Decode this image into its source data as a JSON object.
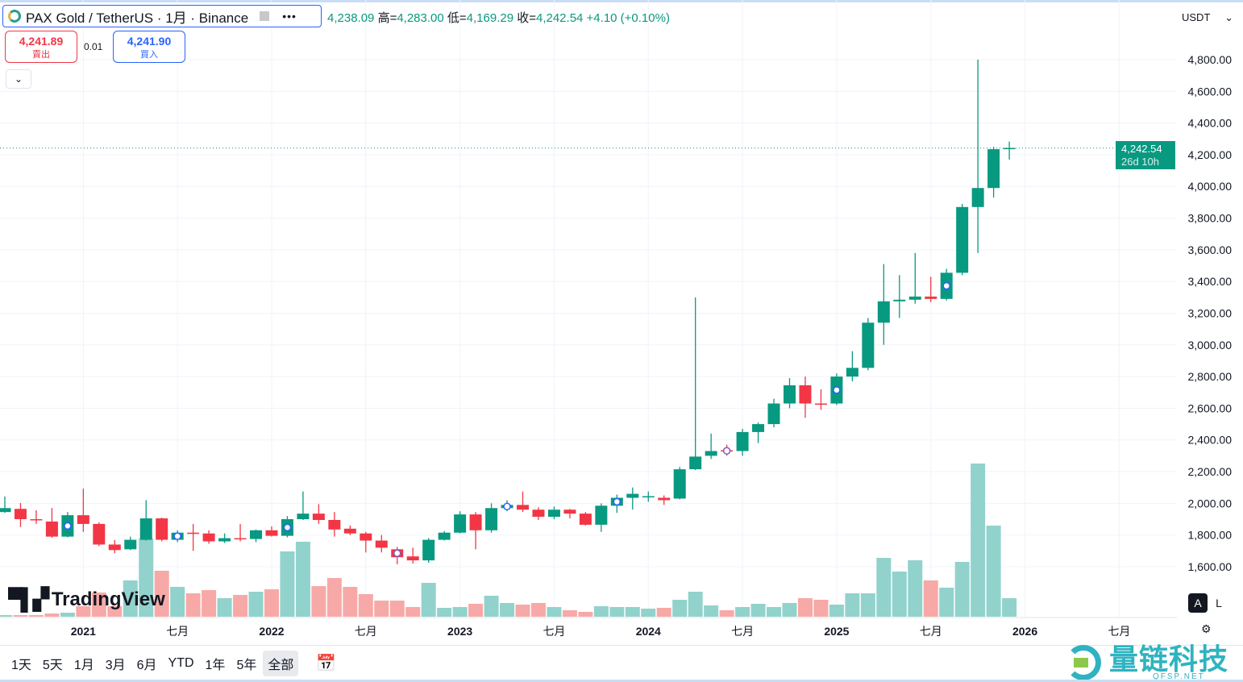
{
  "header": {
    "symbol": "PAX Gold / TetherUS · 1月 · Binance",
    "more": "•••",
    "ohlc": {
      "open": "4,238.09",
      "high_label": "高=",
      "high": "4,283.00",
      "low_label": "低=",
      "low": "4,169.29",
      "close_label": "收=",
      "close": "4,242.54",
      "change": "+4.10 (+0.10%)"
    }
  },
  "trade": {
    "sell_price": "4,241.89",
    "sell_label": "賣出",
    "spread": "0.01",
    "buy_price": "4,241.90",
    "buy_label": "買入"
  },
  "currency": "USDT",
  "price_label": {
    "price": "4,242.54",
    "countdown": "26d 10h"
  },
  "scale_buttons": {
    "auto": "A",
    "log": "L"
  },
  "branding": "TradingView",
  "watermark": {
    "name": "量链科技",
    "site": "QFSP.NET"
  },
  "ranges": [
    {
      "label": "1天"
    },
    {
      "label": "5天"
    },
    {
      "label": "1月"
    },
    {
      "label": "3月"
    },
    {
      "label": "6月"
    },
    {
      "label": "YTD"
    },
    {
      "label": "1年"
    },
    {
      "label": "5年"
    },
    {
      "label": "全部",
      "selected": true
    }
  ],
  "colors": {
    "up": "#089981",
    "down": "#f23645",
    "vol_up": "#92d2cc",
    "vol_down": "#f7a9a7",
    "grid": "#f0f3fa"
  },
  "chart_data": {
    "type": "candlestick",
    "interval": "1M",
    "ylim": [
      1500,
      4900
    ],
    "yticks": [
      "1,600.00",
      "1,800.00",
      "2,000.00",
      "2,200.00",
      "2,400.00",
      "2,600.00",
      "2,800.00",
      "3,000.00",
      "3,200.00",
      "3,400.00",
      "3,600.00",
      "3,800.00",
      "4,000.00",
      "4,200.00",
      "4,400.00",
      "4,600.00",
      "4,800.00"
    ],
    "ytick_values": [
      1600,
      1800,
      2000,
      2200,
      2400,
      2600,
      2800,
      3000,
      3200,
      3400,
      3600,
      3800,
      4000,
      4200,
      4400,
      4600,
      4800
    ],
    "xticks": [
      {
        "label": "2021",
        "month": "2021-01"
      },
      {
        "label": "七月",
        "month": "2021-07"
      },
      {
        "label": "2022",
        "month": "2022-01"
      },
      {
        "label": "七月",
        "month": "2022-07"
      },
      {
        "label": "2023",
        "month": "2023-01"
      },
      {
        "label": "七月",
        "month": "2023-07"
      },
      {
        "label": "2024",
        "month": "2024-01"
      },
      {
        "label": "七月",
        "month": "2024-07"
      },
      {
        "label": "2025",
        "month": "2025-01"
      },
      {
        "label": "七月",
        "month": "2025-07"
      },
      {
        "label": "2026",
        "month": "2026-01"
      },
      {
        "label": "七月",
        "month": "2026-07"
      }
    ],
    "first_month": "2020-08",
    "columns": [
      "month",
      "open",
      "high",
      "low",
      "close",
      "volume_relative"
    ],
    "candles": [
      [
        "2020-08",
        1945,
        2043,
        1940,
        1970,
        2
      ],
      [
        "2020-09",
        1965,
        2002,
        1850,
        1900,
        2
      ],
      [
        "2020-10",
        1900,
        1956,
        1870,
        1895,
        2
      ],
      [
        "2020-11",
        1885,
        1970,
        1783,
        1790,
        4
      ],
      [
        "2020-12",
        1790,
        1945,
        1785,
        1925,
        5
      ],
      [
        "2021-01",
        1925,
        2093,
        1820,
        1870,
        13
      ],
      [
        "2021-02",
        1870,
        1880,
        1730,
        1740,
        30
      ],
      [
        "2021-03",
        1740,
        1768,
        1685,
        1705,
        13
      ],
      [
        "2021-04",
        1710,
        1790,
        1705,
        1770,
        45
      ],
      [
        "2021-05",
        1770,
        2020,
        1765,
        1905,
        97
      ],
      [
        "2021-06",
        1905,
        1910,
        1760,
        1770,
        57
      ],
      [
        "2021-07",
        1770,
        1830,
        1755,
        1815,
        37
      ],
      [
        "2021-08",
        1815,
        1870,
        1700,
        1812,
        29
      ],
      [
        "2021-09",
        1810,
        1830,
        1745,
        1760,
        33
      ],
      [
        "2021-10",
        1760,
        1810,
        1750,
        1780,
        23
      ],
      [
        "2021-11",
        1780,
        1870,
        1760,
        1775,
        27
      ],
      [
        "2021-12",
        1775,
        1835,
        1755,
        1830,
        31
      ],
      [
        "2022-01",
        1830,
        1855,
        1790,
        1795,
        34
      ],
      [
        "2022-02",
        1795,
        1920,
        1785,
        1900,
        81
      ],
      [
        "2022-03",
        1900,
        2075,
        1895,
        1935,
        93
      ],
      [
        "2022-04",
        1935,
        1995,
        1870,
        1895,
        38
      ],
      [
        "2022-05",
        1895,
        1945,
        1790,
        1835,
        48
      ],
      [
        "2022-06",
        1840,
        1860,
        1800,
        1810,
        37
      ],
      [
        "2022-07",
        1810,
        1820,
        1690,
        1765,
        28
      ],
      [
        "2022-08",
        1765,
        1800,
        1690,
        1720,
        20
      ],
      [
        "2022-09",
        1710,
        1725,
        1615,
        1660,
        20
      ],
      [
        "2022-10",
        1665,
        1720,
        1620,
        1640,
        12
      ],
      [
        "2022-11",
        1640,
        1780,
        1625,
        1770,
        42
      ],
      [
        "2022-12",
        1770,
        1825,
        1765,
        1815,
        11
      ],
      [
        "2023-01",
        1815,
        1950,
        1810,
        1930,
        12
      ],
      [
        "2023-02",
        1930,
        1945,
        1710,
        1830,
        16
      ],
      [
        "2023-03",
        1830,
        2000,
        1815,
        1970,
        26
      ],
      [
        "2023-04",
        1970,
        2020,
        1950,
        1990,
        17
      ],
      [
        "2023-05",
        1990,
        2075,
        1945,
        1960,
        15
      ],
      [
        "2023-06",
        1960,
        1975,
        1895,
        1915,
        17
      ],
      [
        "2023-07",
        1915,
        1980,
        1900,
        1960,
        12
      ],
      [
        "2023-08",
        1960,
        1965,
        1905,
        1935,
        8
      ],
      [
        "2023-09",
        1935,
        1945,
        1860,
        1865,
        6
      ],
      [
        "2023-10",
        1865,
        2000,
        1820,
        1985,
        13
      ],
      [
        "2023-11",
        1985,
        2055,
        1940,
        2035,
        12
      ],
      [
        "2023-12",
        2035,
        2100,
        1960,
        2060,
        12
      ],
      [
        "2024-01",
        2045,
        2075,
        2010,
        2045,
        10
      ],
      [
        "2024-02",
        2035,
        2050,
        1990,
        2020,
        11
      ],
      [
        "2024-03",
        2030,
        2230,
        2025,
        2215,
        21
      ],
      [
        "2024-04",
        2215,
        3300,
        2210,
        2295,
        31
      ],
      [
        "2024-05",
        2300,
        2440,
        2280,
        2330,
        14
      ],
      [
        "2024-06",
        2335,
        2370,
        2300,
        2330,
        8
      ],
      [
        "2024-07",
        2330,
        2470,
        2300,
        2450,
        12
      ],
      [
        "2024-08",
        2450,
        2510,
        2380,
        2500,
        16
      ],
      [
        "2024-09",
        2500,
        2660,
        2480,
        2630,
        12
      ],
      [
        "2024-10",
        2630,
        2790,
        2600,
        2745,
        17
      ],
      [
        "2024-11",
        2745,
        2800,
        2540,
        2630,
        23
      ],
      [
        "2024-12",
        2630,
        2720,
        2590,
        2625,
        21
      ],
      [
        "2025-01",
        2630,
        2820,
        2620,
        2800,
        15
      ],
      [
        "2025-02",
        2800,
        2960,
        2770,
        2855,
        29
      ],
      [
        "2025-03",
        2855,
        3170,
        2840,
        3140,
        29
      ],
      [
        "2025-04",
        3140,
        3510,
        3000,
        3275,
        73
      ],
      [
        "2025-05",
        3275,
        3440,
        3170,
        3285,
        56
      ],
      [
        "2025-06",
        3285,
        3580,
        3260,
        3305,
        70
      ],
      [
        "2025-07",
        3305,
        3430,
        3270,
        3290,
        45
      ],
      [
        "2025-08",
        3290,
        3480,
        3280,
        3455,
        36
      ],
      [
        "2025-09",
        3455,
        3890,
        3440,
        3870,
        68
      ],
      [
        "2025-10",
        3870,
        4800,
        3580,
        3990,
        190
      ],
      [
        "2025-11",
        3990,
        4250,
        3930,
        4235,
        113
      ],
      [
        "2025-12",
        4238.09,
        4283.0,
        4169.29,
        4242.54,
        23
      ]
    ],
    "event_markers": [
      "2020-12",
      "2021-07",
      "2022-02",
      "2022-09",
      "2023-04",
      "2023-11",
      "2024-06",
      "2025-01",
      "2025-08"
    ],
    "last_price": 4242.54,
    "grid": true
  }
}
